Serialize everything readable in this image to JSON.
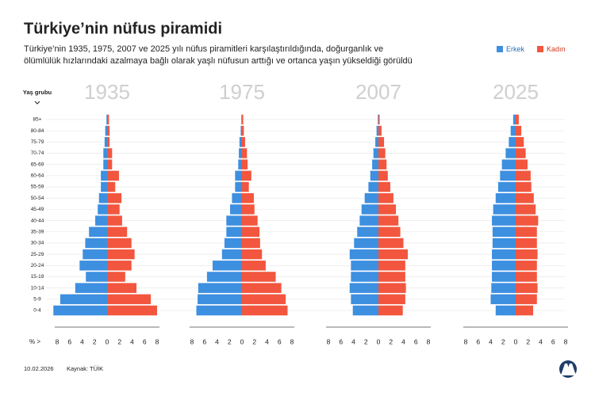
{
  "title": "Türkiye’nin nüfus piramidi",
  "subtitle": "Türkiye’nin 1935, 1975, 2007 ve 2025 yılı nüfus piramitleri karşılaştırıldığında, doğurganlık ve ölümlülük hızlarındaki azalmaya bağlı olarak yaşlı nüfusun arttığı ve ortanca yaşın yükseldiği görüldü",
  "footer": {
    "date": "10.02.2026",
    "source": "Kaynak: TÜİK"
  },
  "chart_data": [
    {
      "type": "pyramid",
      "title": "1935",
      "ylabel": "Yaş grubu",
      "xlabel": "% >",
      "grid": true,
      "categories": [
        "0-4",
        "5-9",
        "10-14",
        "15-19",
        "20-24",
        "25-29",
        "30-34",
        "35-39",
        "40-44",
        "45-49",
        "50-54",
        "55-59",
        "60-64",
        "65-69",
        "70-74",
        "75-79",
        "80-84",
        "85+"
      ],
      "series": [
        {
          "name": "Erkek",
          "color": "#3d8fe0",
          "values": [
            8.6,
            7.5,
            5.1,
            3.4,
            4.4,
            3.9,
            3.5,
            2.9,
            1.9,
            1.5,
            1.3,
            1.0,
            1.0,
            0.6,
            0.6,
            0.4,
            0.3,
            0.1
          ]
        },
        {
          "name": "Kadın",
          "color": "#f2563e",
          "values": [
            8.0,
            7.0,
            4.7,
            2.9,
            3.9,
            4.4,
            3.9,
            3.2,
            2.4,
            2.0,
            2.3,
            1.3,
            1.9,
            0.8,
            0.8,
            0.4,
            0.4,
            0.3
          ]
        }
      ],
      "xlim": [
        -8,
        8
      ],
      "xticks": [
        {
          "value": -8,
          "label": "8"
        },
        {
          "value": -6,
          "label": "6"
        },
        {
          "value": -4,
          "label": "4"
        },
        {
          "value": -2,
          "label": "2"
        },
        0,
        2,
        4,
        6,
        8
      ]
    },
    {
      "type": "pyramid",
      "title": "1975",
      "series": [
        {
          "color": "#3d8fe0",
          "values": [
            7.3,
            7.1,
            7.0,
            5.6,
            4.7,
            3.2,
            2.8,
            2.5,
            2.5,
            1.9,
            1.6,
            1.1,
            1.1,
            0.6,
            0.5,
            0.4,
            0.2,
            0.1
          ]
        },
        {
          "color": "#f2563e",
          "values": [
            7.3,
            7.0,
            6.3,
            5.4,
            3.8,
            3.2,
            2.9,
            2.8,
            2.5,
            2.0,
            1.9,
            1.1,
            1.5,
            0.9,
            0.8,
            0.5,
            0.3,
            0.2
          ]
        }
      ],
      "xlim": [
        -8,
        8
      ],
      "xticks": [
        {
          "value": -8,
          "label": "8"
        },
        {
          "value": -6,
          "label": "6"
        },
        {
          "value": -4,
          "label": "4"
        },
        {
          "value": -2,
          "label": "2"
        },
        0,
        2,
        4,
        6,
        8
      ]
    },
    {
      "type": "pyramid",
      "title": "2007",
      "series": [
        {
          "color": "#3d8fe0",
          "values": [
            4.1,
            4.4,
            4.6,
            4.4,
            4.4,
            4.6,
            3.9,
            3.4,
            3.0,
            2.7,
            2.2,
            1.6,
            1.3,
            1.0,
            0.8,
            0.5,
            0.3,
            0.1
          ]
        },
        {
          "color": "#f2563e",
          "values": [
            3.9,
            4.3,
            4.4,
            4.3,
            4.3,
            4.7,
            4.0,
            3.5,
            3.2,
            2.8,
            2.4,
            1.9,
            1.5,
            1.3,
            1.1,
            0.9,
            0.5,
            0.2
          ]
        }
      ],
      "xlim": [
        -8,
        8
      ],
      "xticks": [
        {
          "value": -8,
          "label": "8"
        },
        {
          "value": -6,
          "label": "6"
        },
        {
          "value": -4,
          "label": "4"
        },
        {
          "value": -2,
          "label": "2"
        },
        0,
        2,
        4,
        6,
        8
      ]
    },
    {
      "type": "pyramid",
      "title": "2025",
      "series": [
        {
          "color": "#3d8fe0",
          "values": [
            3.2,
            4.0,
            3.9,
            3.8,
            3.8,
            3.8,
            3.7,
            3.7,
            3.8,
            3.6,
            3.2,
            2.8,
            2.5,
            2.2,
            1.6,
            1.1,
            0.8,
            0.4
          ]
        },
        {
          "color": "#f2563e",
          "values": [
            2.8,
            3.4,
            3.5,
            3.4,
            3.4,
            3.5,
            3.4,
            3.4,
            3.6,
            3.2,
            2.9,
            2.5,
            2.4,
            1.9,
            1.6,
            1.3,
            0.9,
            0.5
          ]
        }
      ],
      "xlim": [
        -8,
        8
      ],
      "xticks": [
        {
          "value": -8,
          "label": "8"
        },
        {
          "value": -6,
          "label": "6"
        },
        {
          "value": -4,
          "label": "4"
        },
        {
          "value": -2,
          "label": "2"
        },
        0,
        2,
        4,
        6,
        8
      ]
    }
  ]
}
